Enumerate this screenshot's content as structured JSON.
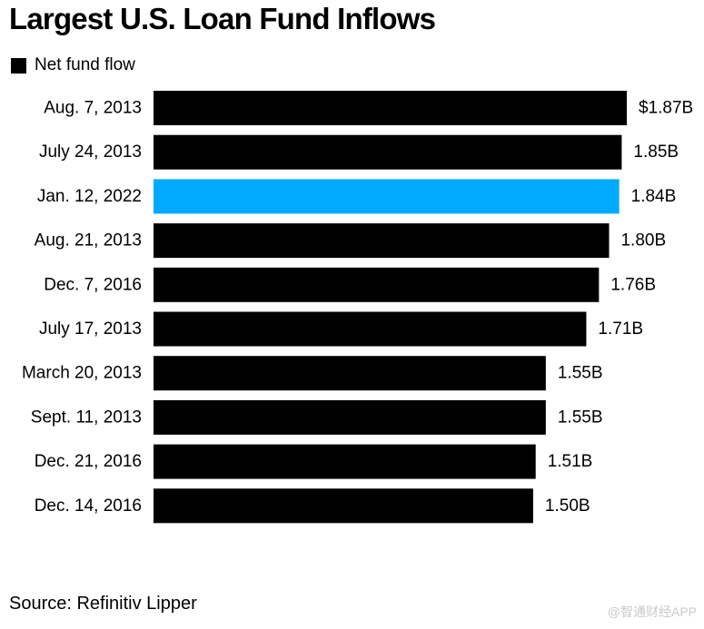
{
  "title": "Largest U.S. Loan Fund Inflows",
  "legend": {
    "label": "Net fund flow"
  },
  "source": "Source: Refinitiv Lipper",
  "watermark": "@智通财经APP",
  "colors": {
    "bar": "#000000",
    "highlight": "#00aaff",
    "text": "#000000"
  },
  "chart_data": {
    "type": "bar",
    "orientation": "horizontal",
    "categories": [
      "Aug. 7, 2013",
      "July 24, 2013",
      "Jan. 12, 2022",
      "Aug. 21, 2013",
      "Dec. 7, 2016",
      "July 17, 2013",
      "March 20, 2013",
      "Sept. 11, 2013",
      "Dec. 21, 2016",
      "Dec. 14, 2016"
    ],
    "series": [
      {
        "name": "Net fund flow",
        "values": [
          1.87,
          1.85,
          1.84,
          1.8,
          1.76,
          1.71,
          1.55,
          1.55,
          1.51,
          1.5
        ]
      }
    ],
    "data_labels": [
      "$1.87B",
      "1.85B",
      "1.84B",
      "1.80B",
      "1.76B",
      "1.71B",
      "1.55B",
      "1.55B",
      "1.51B",
      "1.50B"
    ],
    "highlight_category": "Jan. 12, 2022",
    "xlim": [
      0,
      1.87
    ],
    "grid": false,
    "legend_position": "top-left"
  }
}
